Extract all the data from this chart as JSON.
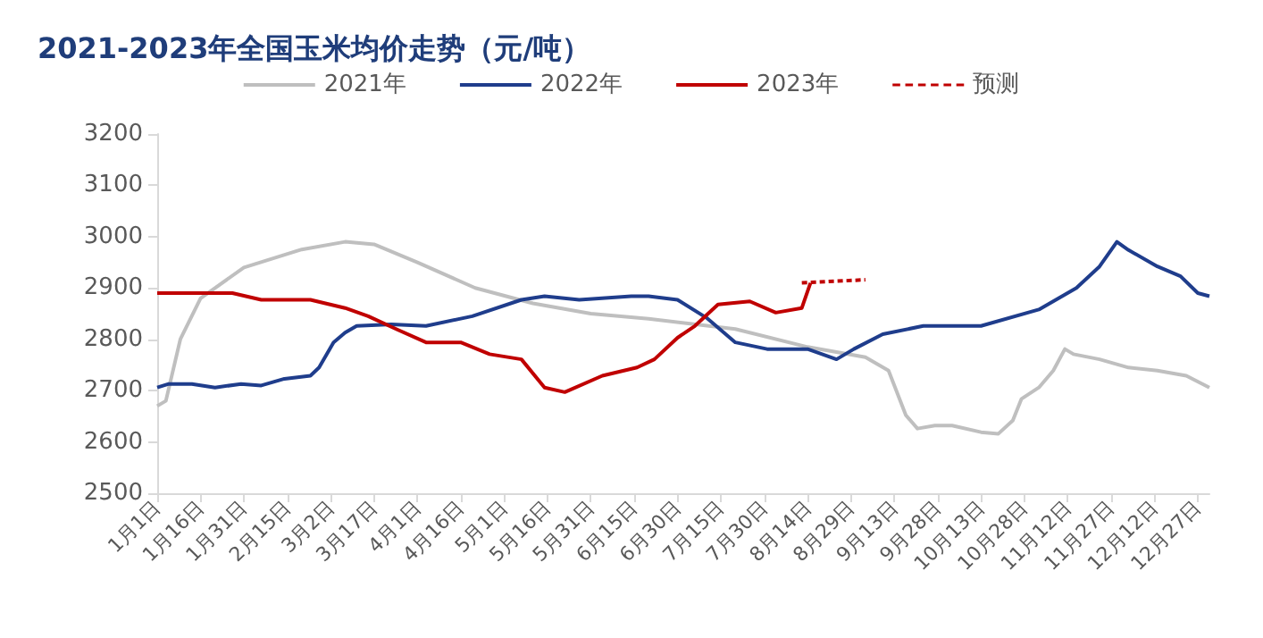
{
  "chart_data": {
    "type": "line",
    "title": "2021-2023年全国玉米均价走势（元/吨）",
    "xlim": [
      "--01-01",
      "--12-31"
    ],
    "xticks": [
      {
        "value": "--01-01",
        "label": "1月1日"
      },
      {
        "value": "--01-16",
        "label": "1月16日"
      },
      {
        "value": "--01-31",
        "label": "1月31日"
      },
      {
        "value": "--02-15",
        "label": "2月15日"
      },
      {
        "value": "--03-02",
        "label": "3月2日"
      },
      {
        "value": "--03-17",
        "label": "3月17日"
      },
      {
        "value": "--04-01",
        "label": "4月1日"
      },
      {
        "value": "--04-16",
        "label": "4月16日"
      },
      {
        "value": "--05-01",
        "label": "5月1日"
      },
      {
        "value": "--05-16",
        "label": "5月16日"
      },
      {
        "value": "--05-31",
        "label": "5月31日"
      },
      {
        "value": "--06-15",
        "label": "6月15日"
      },
      {
        "value": "--06-30",
        "label": "6月30日"
      },
      {
        "value": "--07-15",
        "label": "7月15日"
      },
      {
        "value": "--07-30",
        "label": "7月30日"
      },
      {
        "value": "--08-14",
        "label": "8月14日"
      },
      {
        "value": "--08-29",
        "label": "8月29日"
      },
      {
        "value": "--09-13",
        "label": "9月13日"
      },
      {
        "value": "--09-28",
        "label": "9月28日"
      },
      {
        "value": "--10-13",
        "label": "10月13日"
      },
      {
        "value": "--10-28",
        "label": "10月28日"
      },
      {
        "value": "--11-12",
        "label": "11月12日"
      },
      {
        "value": "--11-27",
        "label": "11月27日"
      },
      {
        "value": "--12-12",
        "label": "12月12日"
      },
      {
        "value": "--12-27",
        "label": "12月27日"
      }
    ],
    "ylim": [
      2500,
      3200
    ],
    "yticks": [
      2500,
      2600,
      2700,
      2800,
      2900,
      3000,
      3100,
      3200
    ],
    "grid": false,
    "legend": "top",
    "marker": "none",
    "series": [
      {
        "name": "2021年",
        "color": "#bfbfbf",
        "x": [
          "--01-01",
          "--01-04",
          "--01-09",
          "--01-16",
          "--01-31",
          "--02-20",
          "--03-07",
          "--03-17",
          "--04-01",
          "--04-21",
          "--05-11",
          "--05-31",
          "--06-20",
          "--07-20",
          "--08-14",
          "--09-03",
          "--09-11",
          "--09-17",
          "--09-21",
          "--09-27",
          "--10-03",
          "--10-13",
          "--10-19",
          "--10-24",
          "--10-27",
          "--11-02",
          "--11-07",
          "--11-11",
          "--11-14",
          "--11-23",
          "--12-03",
          "--12-13",
          "--12-23",
          "--12-31"
        ],
        "values": [
          2670,
          2680,
          2800,
          2880,
          2940,
          2975,
          2990,
          2985,
          2950,
          2900,
          2870,
          2850,
          2840,
          2820,
          2785,
          2765,
          2739,
          2652,
          2626,
          2632,
          2632,
          2619,
          2616,
          2642,
          2684,
          2706,
          2739,
          2781,
          2771,
          2761,
          2745,
          2739,
          2729,
          2706
        ]
      },
      {
        "name": "2022年",
        "color": "#1f3d8c",
        "x": [
          "--01-01",
          "--01-05",
          "--01-13",
          "--01-21",
          "--01-30",
          "--02-06",
          "--02-14",
          "--02-23",
          "--02-26",
          "--03-03",
          "--03-07",
          "--03-11",
          "--03-23",
          "--04-04",
          "--04-20",
          "--05-07",
          "--05-15",
          "--05-27",
          "--06-14",
          "--06-20",
          "--06-30",
          "--07-10",
          "--07-20",
          "--07-31",
          "--08-14",
          "--08-24",
          "--08-30",
          "--09-09",
          "--09-23",
          "--10-13",
          "--11-02",
          "--11-15",
          "--11-23",
          "--11-29",
          "--12-03",
          "--12-13",
          "--12-21",
          "--12-27",
          "--12-31"
        ],
        "values": [
          2706,
          2713,
          2713,
          2706,
          2713,
          2710,
          2723,
          2729,
          2745,
          2794,
          2813,
          2826,
          2829,
          2826,
          2845,
          2877,
          2884,
          2877,
          2884,
          2884,
          2877,
          2842,
          2794,
          2781,
          2781,
          2761,
          2781,
          2810,
          2826,
          2826,
          2858,
          2900,
          2942,
          2990,
          2974,
          2942,
          2923,
          2890,
          2884
        ]
      },
      {
        "name": "2023年",
        "color": "#c00000",
        "x": [
          "--01-01",
          "--01-09",
          "--01-27",
          "--02-06",
          "--02-23",
          "--03-07",
          "--03-15",
          "--03-25",
          "--04-04",
          "--04-16",
          "--04-26",
          "--05-07",
          "--05-15",
          "--05-22",
          "--06-04",
          "--06-16",
          "--06-22",
          "--06-30",
          "--07-06",
          "--07-14",
          "--07-25",
          "--08-03",
          "--08-12",
          "--08-15"
        ],
        "values": [
          2890,
          2890,
          2890,
          2877,
          2877,
          2861,
          2845,
          2819,
          2794,
          2794,
          2771,
          2761,
          2706,
          2697,
          2729,
          2745,
          2761,
          2803,
          2826,
          2868,
          2874,
          2852,
          2861,
          2910
        ]
      },
      {
        "name": "预测",
        "color": "#c00000",
        "line_style": "dashed",
        "x": [
          "--08-12",
          "--09-03"
        ],
        "values": [
          2910,
          2916
        ]
      }
    ]
  }
}
